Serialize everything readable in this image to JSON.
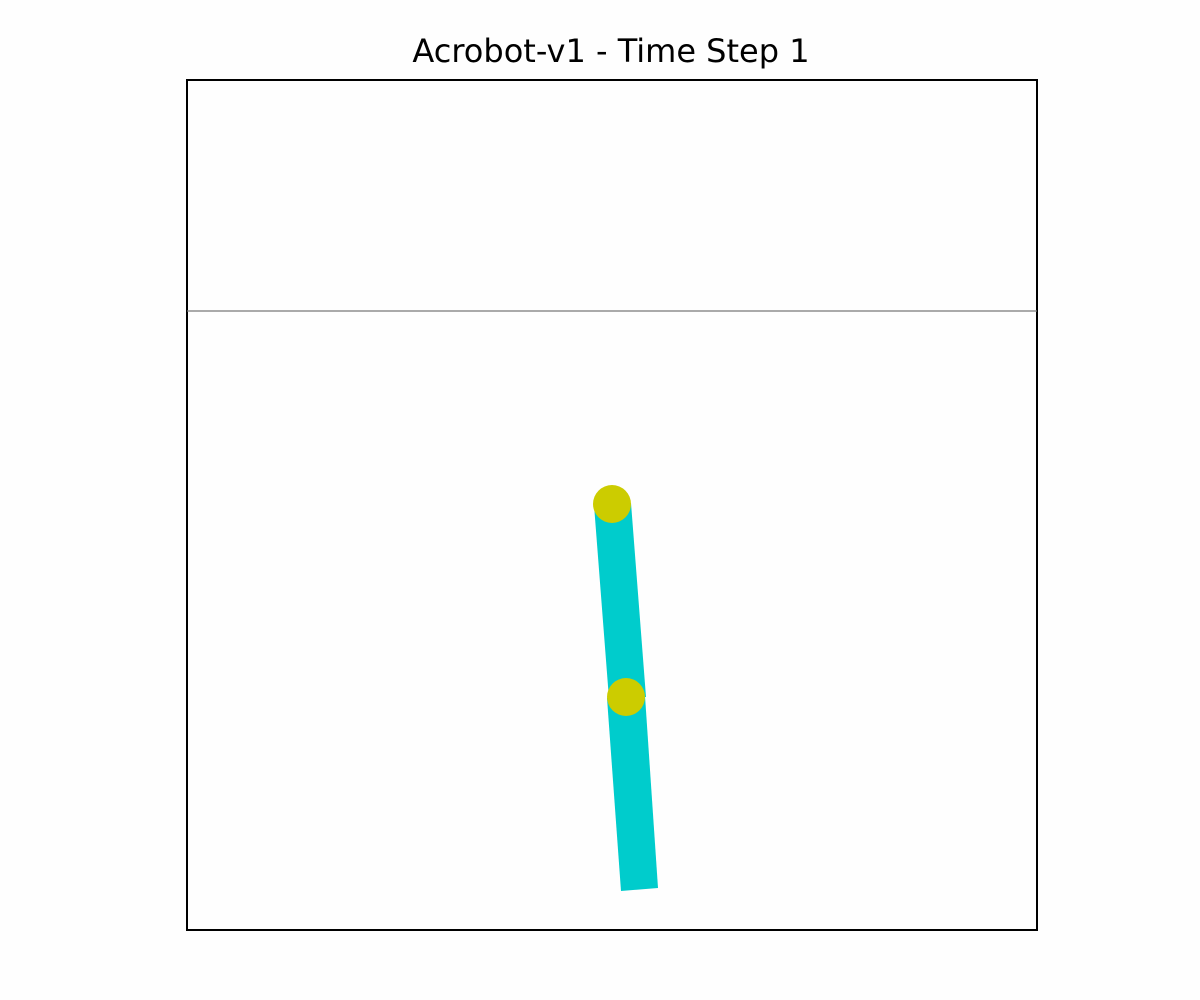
{
  "title": "Acrobot-v1 - Time Step 1",
  "colors": {
    "page_background": "#fefefe",
    "frame_border": "#000000",
    "target_line": "#777777",
    "link": "#00cccc",
    "joint": "#cccc00"
  },
  "state": {
    "time_step": 1,
    "link1_angle_deg_from_down": -4.2,
    "link2_angle_deg_from_down": -4.6
  }
}
